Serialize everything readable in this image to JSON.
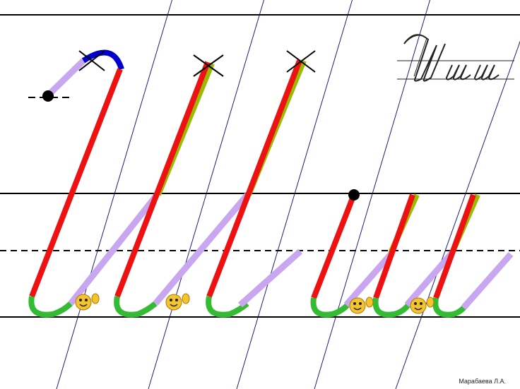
{
  "author": "Марабаева Л.А.",
  "colors": {
    "rule": "#000000",
    "slant": "#1f1f7a",
    "downstroke": "#ee1111",
    "upstroke": "#c9a6f0",
    "loop": "#33bb33",
    "cap": "#0000cc",
    "retrace": "#99bb00",
    "dot": "#000000",
    "smiley": "#f4c430"
  },
  "icons": [
    "start-dot-icon",
    "cross-mark-icon",
    "smiley-face-icon",
    "cursive-sample-icon"
  ],
  "lines": [
    "top",
    "upper-main",
    "midline-dashed",
    "baseline"
  ]
}
